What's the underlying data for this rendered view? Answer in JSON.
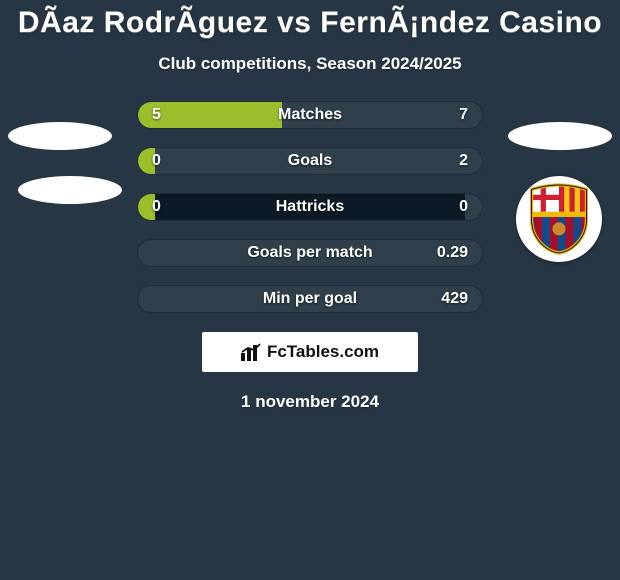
{
  "background_color": "#273644",
  "text_color": "#ffffff",
  "title": {
    "text": "DÃ­az RodrÃ­guez vs FernÃ¡ndez Casino",
    "font_size": 30,
    "color": "#ffffff"
  },
  "subtitle": {
    "text": "Club competitions, Season 2024/2025",
    "font_size": 17,
    "color": "#ffffff"
  },
  "bar_bg_color": "#0b1a26",
  "left_color": "#9cbd2c",
  "right_color": "#2f3f4c",
  "value_font_size": 16,
  "label_font_size": 16,
  "label_color": "#ffffff",
  "rows": [
    {
      "label": "Matches",
      "left_val": "5",
      "right_val": "7",
      "left_pct": 42,
      "right_pct": 58
    },
    {
      "label": "Goals",
      "left_val": "0",
      "right_val": "2",
      "left_pct": 5,
      "right_pct": 95
    },
    {
      "label": "Hattricks",
      "left_val": "0",
      "right_val": "0",
      "left_pct": 5,
      "right_pct": 5
    },
    {
      "label": "Goals per match",
      "left_val": "",
      "right_val": "0.29",
      "left_pct": 0,
      "right_pct": 100
    },
    {
      "label": "Min per goal",
      "left_val": "",
      "right_val": "429",
      "left_pct": 0,
      "right_pct": 100
    }
  ],
  "footer_brand": "FcTables.com",
  "date": {
    "text": "1 november 2024",
    "font_size": 17,
    "color": "#ffffff"
  },
  "crest_colors": {
    "top_left": "#9b1b3f",
    "top_right": "#f6c514",
    "cross": "#cf2030",
    "cross_bg": "#ffffff",
    "bottom_blue": "#154a8a",
    "bottom_red": "#a50f2b",
    "outline": "#f0b90a",
    "ball": "#c98a2b"
  }
}
